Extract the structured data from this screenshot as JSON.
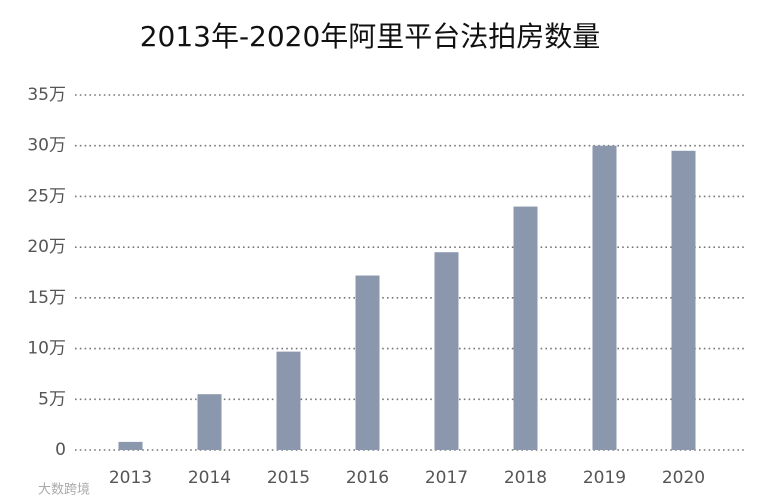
{
  "chart_data": {
    "type": "bar",
    "title": "2013年-2020年阿里平台法拍房数量",
    "categories": [
      "2013",
      "2014",
      "2015",
      "2016",
      "2017",
      "2018",
      "2019",
      "2020"
    ],
    "values": [
      0.8,
      5.5,
      9.7,
      17.2,
      19.5,
      24.0,
      30.0,
      29.5
    ],
    "color": "#8a97ad",
    "ylim": [
      0,
      35
    ],
    "yticks": [
      0,
      {
        "value": 5,
        "label": "5万"
      },
      {
        "value": 10,
        "label": "10万"
      },
      {
        "value": 15,
        "label": "15万"
      },
      {
        "value": 20,
        "label": "20万"
      },
      {
        "value": 25,
        "label": "25万"
      },
      {
        "value": 30,
        "label": "30万"
      },
      {
        "value": 35,
        "label": "35万"
      }
    ],
    "grid": true
  },
  "watermark": "大数跨境"
}
